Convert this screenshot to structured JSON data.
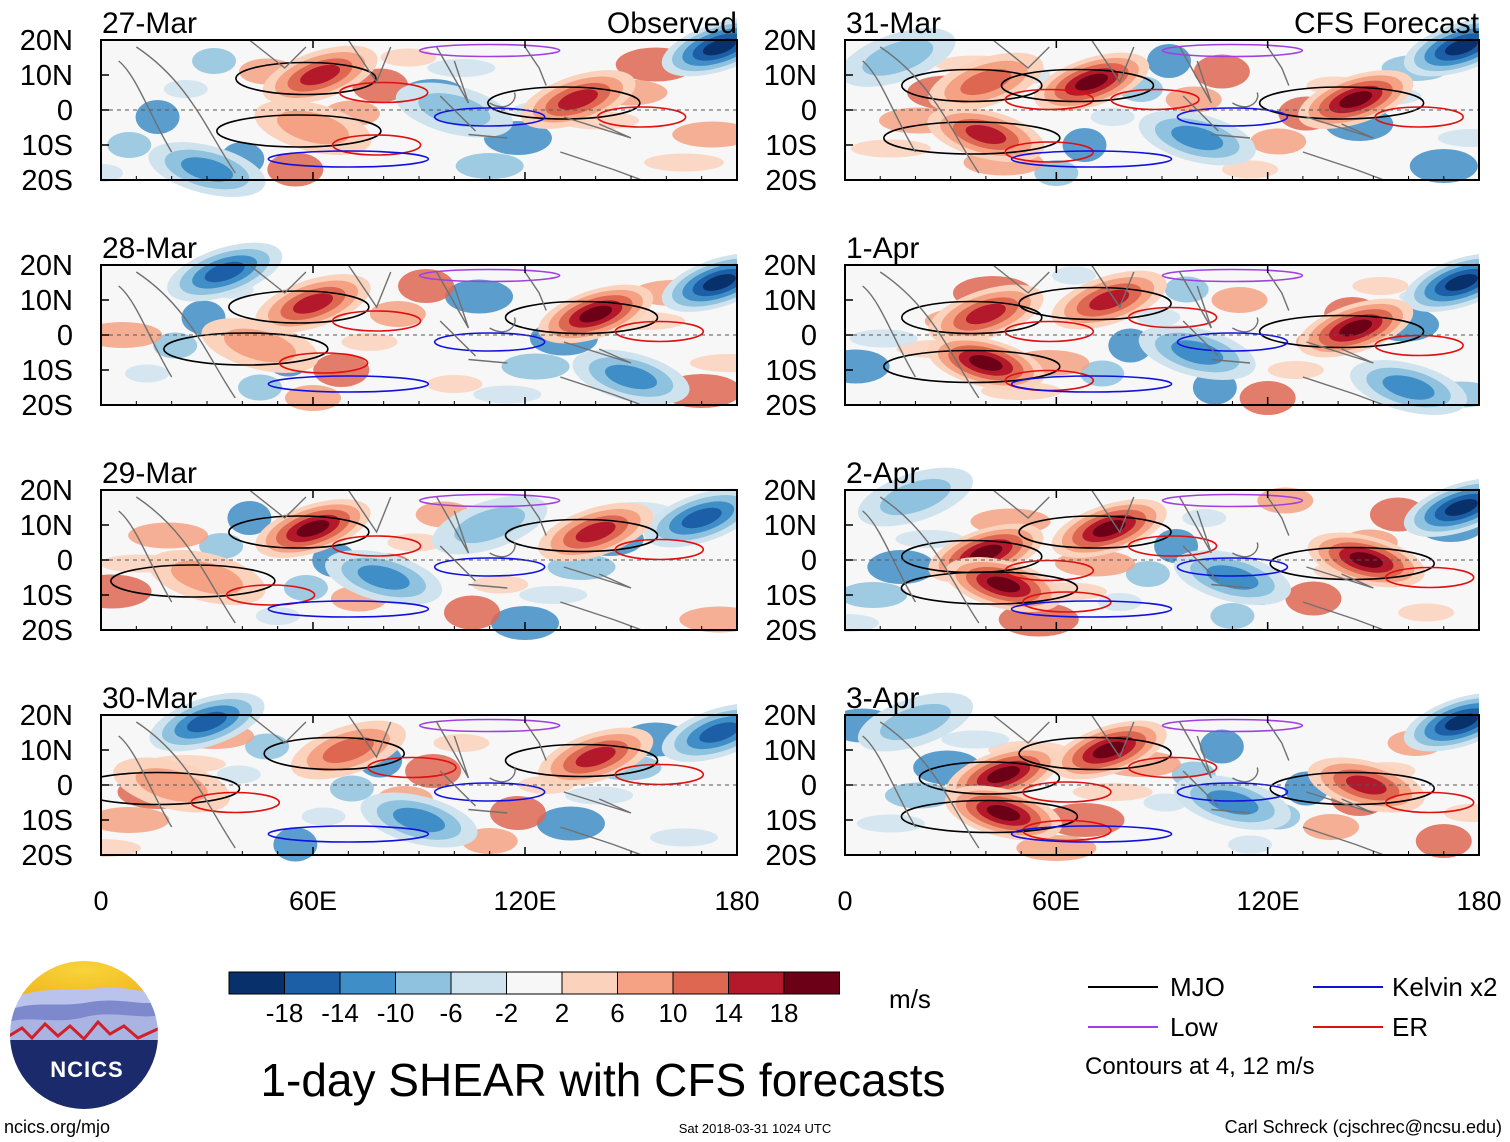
{
  "title": "1-day SHEAR with CFS forecasts",
  "source_url": "ncics.org/mjo",
  "timestamp": "Sat 2018-03-31 1024 UTC",
  "credit": "Carl Schreck (cjschrec@ncsu.edu)",
  "logo_text": "NCICS",
  "headers": {
    "observed": "Observed",
    "forecast": "CFS Forecast"
  },
  "colors": {
    "mjo": "#000000",
    "kelvin": "#1010e0",
    "low": "#a040e0",
    "er": "#e01010",
    "coast": "#707070"
  },
  "chart_data": {
    "type": "heatmap",
    "variable": "vertical wind shear",
    "units": "m/s",
    "x_ticks": [
      "0",
      "60E",
      "120E",
      "180"
    ],
    "y_ticks": [
      "20N",
      "10N",
      "0",
      "10S",
      "20S"
    ],
    "xlim": [
      0,
      180
    ],
    "ylim": [
      -20,
      20
    ],
    "colorbar": {
      "labels": [
        "-18",
        "-14",
        "-10",
        "-6",
        "-2",
        "2",
        "6",
        "10",
        "14",
        "18"
      ],
      "colors": [
        "#08306b",
        "#1c5fa6",
        "#3f8ec7",
        "#8ec2de",
        "#cfe3ef",
        "#f7f7f7",
        "#fbd2bc",
        "#f4a283",
        "#de6752",
        "#b3192b",
        "#6b0016"
      ]
    },
    "legend": [
      {
        "name": "MJO",
        "color": "#000000"
      },
      {
        "name": "Kelvin x2",
        "color": "#1010e0"
      },
      {
        "name": "Low",
        "color": "#a040e0"
      },
      {
        "name": "ER",
        "color": "#e01010"
      }
    ],
    "contour_note": "Contours at 4, 12 m/s",
    "panels": [
      {
        "date": "27-Mar",
        "kind": "observed",
        "header": "Observed",
        "maxima": [
          [
            62,
            10,
            14
          ],
          [
            135,
            3,
            14
          ],
          [
            60,
            -5,
            6
          ]
        ],
        "minima": [
          [
            175,
            18,
            -18
          ],
          [
            30,
            -17,
            -10
          ],
          [
            100,
            0,
            -6
          ]
        ]
      },
      {
        "date": "28-Mar",
        "kind": "observed",
        "header": "",
        "maxima": [
          [
            60,
            9,
            14
          ],
          [
            140,
            6,
            18
          ],
          [
            45,
            -3,
            6
          ]
        ],
        "minima": [
          [
            175,
            15,
            -18
          ],
          [
            35,
            18,
            -14
          ],
          [
            150,
            -12,
            -10
          ]
        ]
      },
      {
        "date": "29-Mar",
        "kind": "observed",
        "header": "",
        "maxima": [
          [
            60,
            9,
            18
          ],
          [
            140,
            8,
            14
          ],
          [
            30,
            -5,
            6
          ]
        ],
        "minima": [
          [
            170,
            12,
            -14
          ],
          [
            80,
            -5,
            -10
          ],
          [
            110,
            10,
            -6
          ]
        ]
      },
      {
        "date": "30-Mar",
        "kind": "observed",
        "header": "",
        "maxima": [
          [
            70,
            10,
            10
          ],
          [
            140,
            8,
            14
          ],
          [
            20,
            0,
            6
          ]
        ],
        "minima": [
          [
            175,
            15,
            -14
          ],
          [
            90,
            -10,
            -10
          ],
          [
            30,
            18,
            -14
          ]
        ]
      },
      {
        "date": "31-Mar",
        "kind": "forecast",
        "header": "CFS Forecast",
        "maxima": [
          [
            40,
            8,
            10
          ],
          [
            70,
            8,
            18
          ],
          [
            145,
            3,
            18
          ],
          [
            40,
            -7,
            14
          ]
        ],
        "minima": [
          [
            175,
            18,
            -18
          ],
          [
            100,
            -8,
            -10
          ],
          [
            15,
            15,
            -6
          ]
        ]
      },
      {
        "date": "1-Apr",
        "kind": "forecast",
        "header": "",
        "maxima": [
          [
            40,
            6,
            14
          ],
          [
            75,
            10,
            14
          ],
          [
            145,
            2,
            18
          ],
          [
            40,
            -8,
            18
          ]
        ],
        "minima": [
          [
            175,
            15,
            -18
          ],
          [
            100,
            -5,
            -10
          ],
          [
            160,
            -15,
            -10
          ]
        ]
      },
      {
        "date": "2-Apr",
        "kind": "forecast",
        "header": "",
        "maxima": [
          [
            40,
            2,
            18
          ],
          [
            75,
            9,
            18
          ],
          [
            148,
            0,
            18
          ],
          [
            45,
            -7,
            18
          ]
        ],
        "minima": [
          [
            175,
            15,
            -18
          ],
          [
            110,
            -5,
            -10
          ],
          [
            20,
            18,
            -6
          ]
        ]
      },
      {
        "date": "3-Apr",
        "kind": "forecast",
        "header": "",
        "maxima": [
          [
            45,
            3,
            18
          ],
          [
            75,
            10,
            18
          ],
          [
            148,
            0,
            14
          ],
          [
            45,
            -8,
            18
          ]
        ],
        "minima": [
          [
            175,
            18,
            -18
          ],
          [
            110,
            -5,
            -10
          ],
          [
            20,
            18,
            -6
          ]
        ]
      }
    ]
  }
}
